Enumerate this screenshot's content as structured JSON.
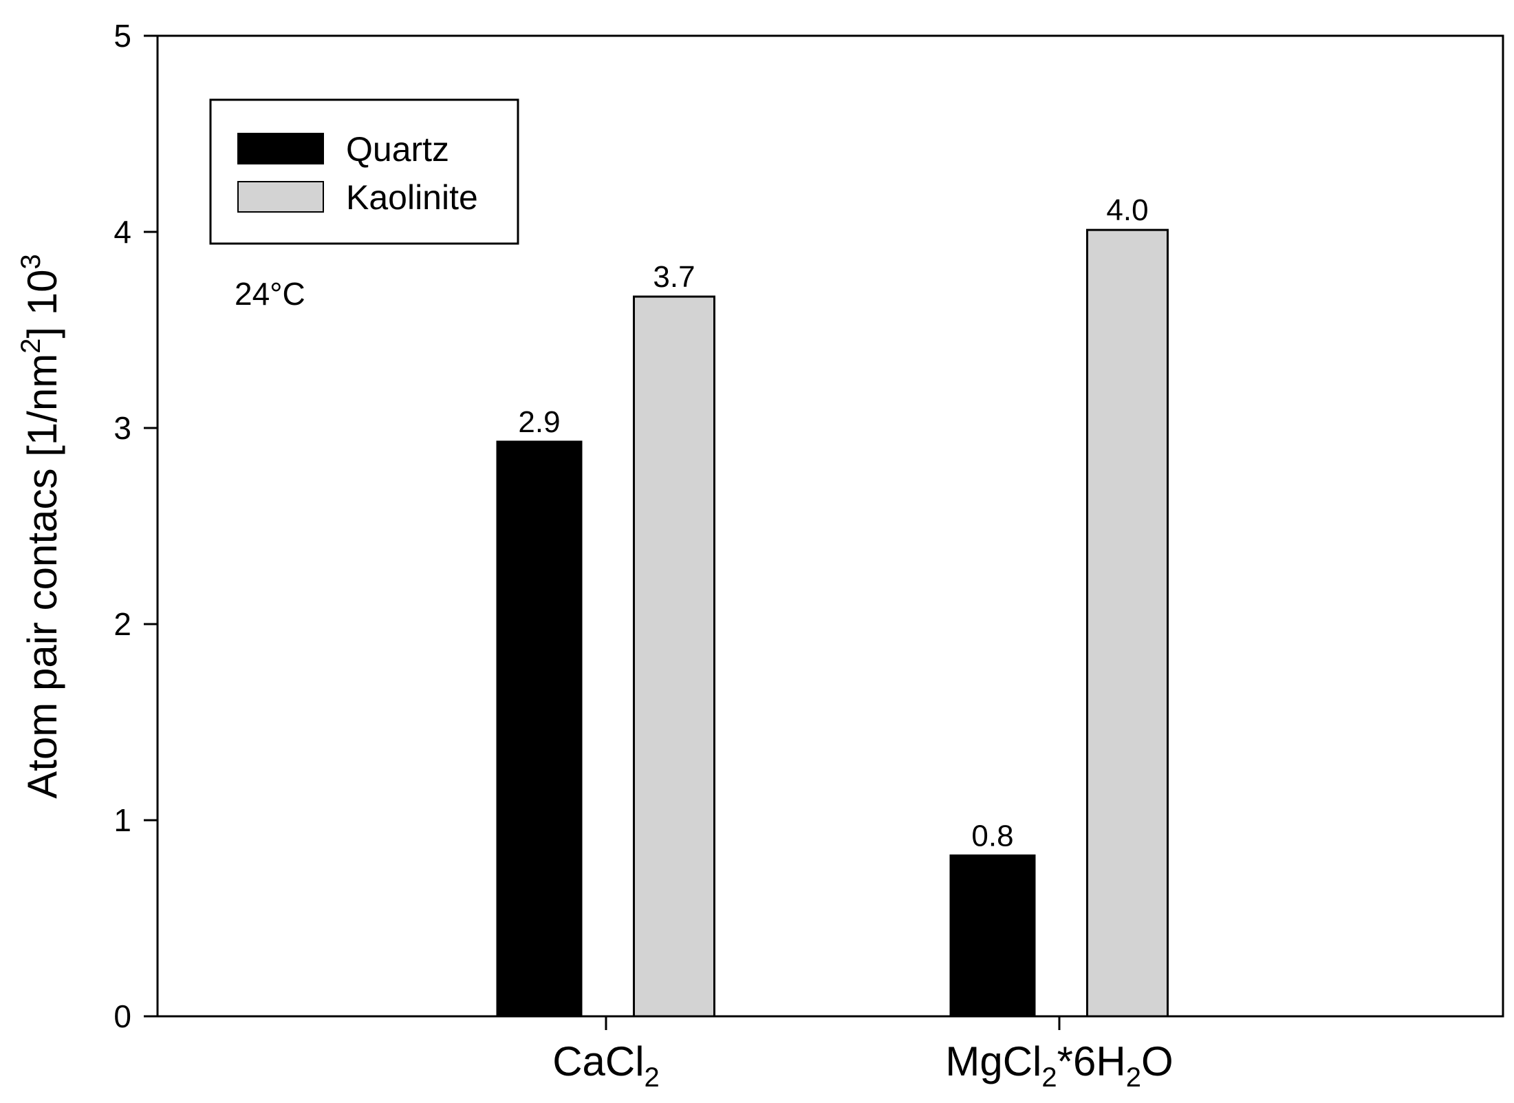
{
  "chart_data": {
    "type": "bar",
    "categories": [
      {
        "base": "CaCl",
        "sub": "2",
        "rest": "",
        "sub2": "",
        "rest2": ""
      },
      {
        "base": "MgCl",
        "sub": "2",
        "rest": "*6H",
        "sub2": "2",
        "rest2": "O"
      }
    ],
    "series": [
      {
        "name": "Quartz",
        "color": "#000000",
        "values": [
          2.93,
          0.82
        ],
        "labels": [
          "2.9",
          "0.8"
        ]
      },
      {
        "name": "Kaolinite",
        "color": "#d3d3d3",
        "values": [
          3.67,
          4.01
        ],
        "labels": [
          "3.7",
          "4.0"
        ]
      }
    ],
    "ylabel": {
      "main": "Atom pair contacs [1/nm",
      "sup1": "2",
      "mid": "] 10",
      "sup2": "3"
    },
    "ylim": [
      0,
      5
    ],
    "yticks": [
      "0",
      "1",
      "2",
      "3",
      "4",
      "5"
    ],
    "annotation": "24°C",
    "legend_position": "top-left",
    "grid": false
  }
}
